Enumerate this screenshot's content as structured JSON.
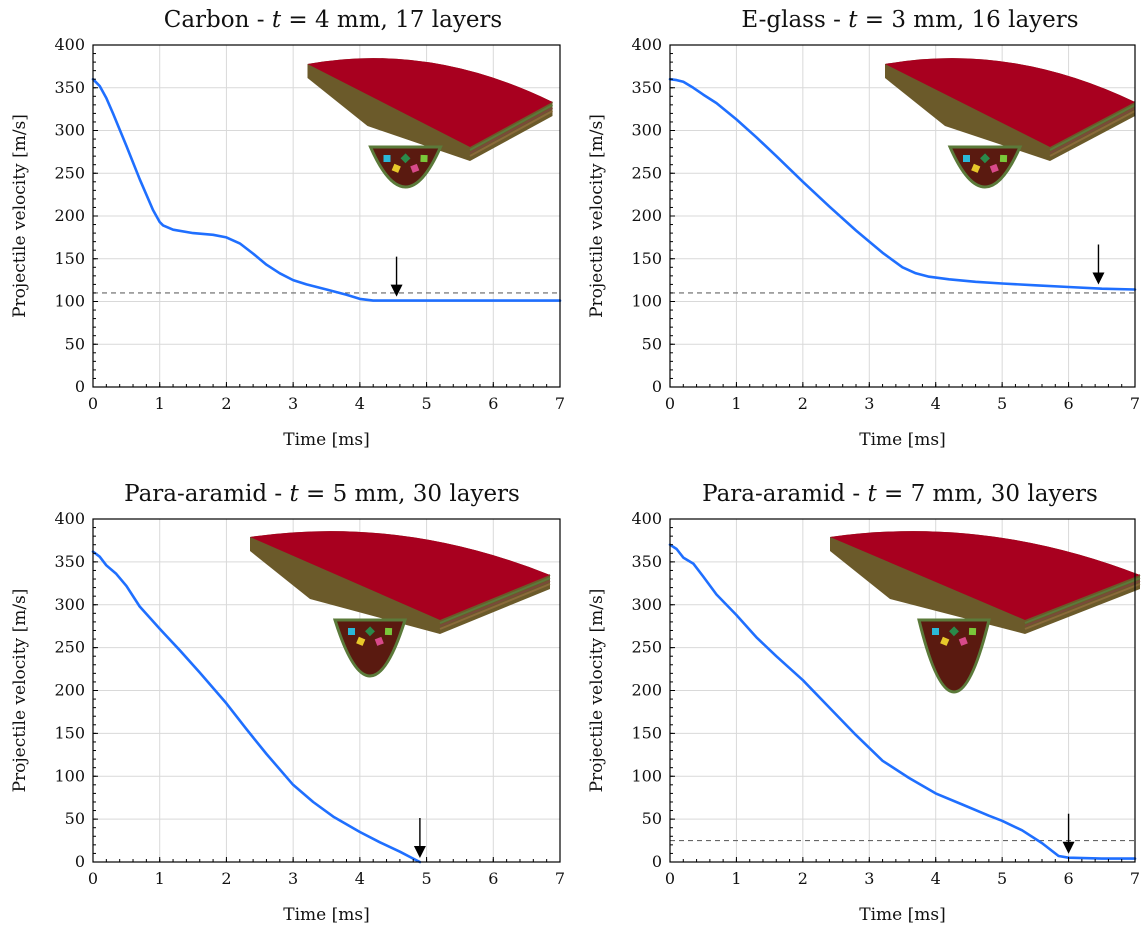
{
  "chart_data": [
    {
      "type": "line",
      "title": "Carbon - t = 4 mm, 17 layers",
      "title_parts": [
        "Carbon - ",
        "t",
        " = 4 mm, 17 layers"
      ],
      "xlabel": "Time [ms]",
      "ylabel": "Projectile velocity [m/s]",
      "xlim": [
        0,
        7
      ],
      "ylim": [
        0,
        400
      ],
      "xticks": [
        0,
        1,
        2,
        3,
        4,
        5,
        6,
        7
      ],
      "yticks": [
        0,
        50,
        100,
        150,
        200,
        250,
        300,
        350,
        400
      ],
      "grid": true,
      "x": [
        0,
        0.1,
        0.2,
        0.3,
        0.5,
        0.7,
        0.9,
        1.0,
        1.05,
        1.2,
        1.5,
        1.8,
        2.0,
        2.2,
        2.4,
        2.6,
        2.8,
        3.0,
        3.2,
        3.5,
        3.8,
        4.0,
        4.2,
        4.5,
        5.0,
        6.0,
        7.0
      ],
      "series": [
        {
          "values": [
            360,
            352,
            338,
            320,
            282,
            243,
            207,
            193,
            189,
            184,
            180,
            178,
            175,
            168,
            156,
            143,
            133,
            125,
            120,
            114,
            108,
            103,
            101,
            101,
            101,
            101,
            101
          ],
          "color": "#1f6fff"
        }
      ],
      "ref_line": 110,
      "arrow_x": 4.55,
      "inset_colors": {
        "top": "#a8001f",
        "layers": [
          "#6b5a2a",
          "#5b7a3a",
          "#7a4a3a",
          "#8a6a3a"
        ],
        "debris": [
          "#2bb8d8",
          "#e8c82a",
          "#2a8a4a",
          "#d84a8a",
          "#7ac83a"
        ]
      }
    },
    {
      "type": "line",
      "title": "E-glass - t = 3 mm, 16 layers",
      "title_parts": [
        "E-glass - ",
        "t",
        " = 3 mm, 16 layers"
      ],
      "xlabel": "Time [ms]",
      "ylabel": "Projectile velocity [m/s]",
      "xlim": [
        0,
        7
      ],
      "ylim": [
        0,
        400
      ],
      "xticks": [
        0,
        1,
        2,
        3,
        4,
        5,
        6,
        7
      ],
      "yticks": [
        0,
        50,
        100,
        150,
        200,
        250,
        300,
        350,
        400
      ],
      "grid": true,
      "x": [
        0,
        0.1,
        0.2,
        0.35,
        0.5,
        0.7,
        1.0,
        1.3,
        1.6,
        2.0,
        2.4,
        2.8,
        3.2,
        3.5,
        3.7,
        3.9,
        4.2,
        4.6,
        5.0,
        5.5,
        6.0,
        6.5,
        7.0
      ],
      "series": [
        {
          "values": [
            360,
            359,
            357,
            350,
            342,
            332,
            313,
            292,
            270,
            240,
            211,
            183,
            157,
            140,
            133,
            129,
            126,
            123,
            121,
            119,
            117,
            115,
            114
          ],
          "color": "#1f6fff"
        }
      ],
      "ref_line": 110,
      "arrow_x": 6.45,
      "inset_colors": {
        "top": "#a8001f",
        "layers": [
          "#6b5a2a",
          "#5b7a3a",
          "#7a4a3a",
          "#8a6a3a"
        ],
        "debris": [
          "#2bb8d8",
          "#e8c82a",
          "#2a8a4a",
          "#d84a8a",
          "#7ac83a"
        ]
      }
    },
    {
      "type": "line",
      "title": "Para-aramid - t = 5 mm, 30 layers",
      "title_parts": [
        "Para-aramid - ",
        "t",
        " = 5 mm, 30 layers"
      ],
      "xlabel": "Time [ms]",
      "ylabel": "Projectile velocity [m/s]",
      "xlim": [
        0,
        7
      ],
      "ylim": [
        0,
        400
      ],
      "xticks": [
        0,
        1,
        2,
        3,
        4,
        5,
        6,
        7
      ],
      "yticks": [
        0,
        50,
        100,
        150,
        200,
        250,
        300,
        350,
        400
      ],
      "grid": true,
      "x": [
        0,
        0.1,
        0.2,
        0.35,
        0.5,
        0.7,
        1.0,
        1.3,
        1.6,
        2.0,
        2.3,
        2.6,
        3.0,
        3.3,
        3.6,
        4.0,
        4.3,
        4.6,
        4.8,
        4.9
      ],
      "series": [
        {
          "values": [
            362,
            356,
            346,
            336,
            322,
            298,
            272,
            247,
            221,
            185,
            155,
            126,
            90,
            70,
            53,
            35,
            23,
            12,
            4,
            0
          ],
          "color": "#1f6fff"
        }
      ],
      "ref_line": null,
      "arrow_x": 4.9,
      "inset_colors": {
        "top": "#a8001f",
        "layers": [
          "#6b5a2a",
          "#5b7a3a",
          "#7a4a3a",
          "#8a6a3a"
        ],
        "debris": [
          "#2bb8d8",
          "#e8c82a",
          "#2a8a4a",
          "#d84a8a",
          "#7ac83a"
        ]
      }
    },
    {
      "type": "line",
      "title": "Para-aramid - t = 7 mm, 30 layers",
      "title_parts": [
        "Para-aramid - ",
        "t",
        " = 7 mm, 30 layers"
      ],
      "xlabel": "Time [ms]",
      "ylabel": "Projectile velocity [m/s]",
      "xlim": [
        0,
        7
      ],
      "ylim": [
        0,
        400
      ],
      "xticks": [
        0,
        1,
        2,
        3,
        4,
        5,
        6,
        7
      ],
      "yticks": [
        0,
        50,
        100,
        150,
        200,
        250,
        300,
        350,
        400
      ],
      "grid": true,
      "x": [
        0,
        0.1,
        0.2,
        0.35,
        0.5,
        0.7,
        1.0,
        1.3,
        1.6,
        2.0,
        2.4,
        2.8,
        3.2,
        3.6,
        4.0,
        4.4,
        4.8,
        5.0,
        5.3,
        5.6,
        5.85,
        6.0,
        6.5,
        7.0
      ],
      "series": [
        {
          "values": [
            370,
            365,
            355,
            348,
            333,
            312,
            288,
            262,
            240,
            212,
            180,
            148,
            118,
            98,
            80,
            67,
            54,
            48,
            37,
            22,
            7,
            5,
            4,
            4
          ],
          "color": "#1f6fff"
        }
      ],
      "ref_line": 25,
      "arrow_x": 6.0,
      "inset_colors": {
        "top": "#a8001f",
        "layers": [
          "#6b5a2a",
          "#5b7a3a",
          "#7a4a3a",
          "#8a6a3a"
        ],
        "debris": [
          "#2bb8d8",
          "#e8c82a",
          "#2a8a4a",
          "#d84a8a",
          "#7ac83a"
        ]
      }
    }
  ]
}
